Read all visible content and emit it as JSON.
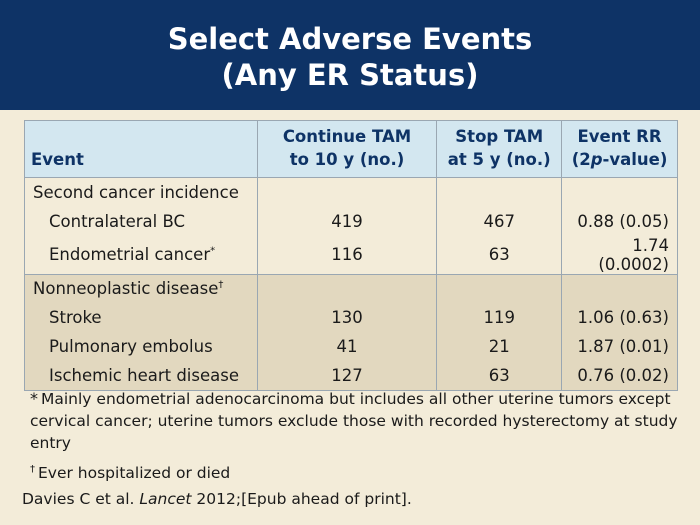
{
  "title": {
    "line1": "Select Adverse Events",
    "line2": "(Any ER Status)"
  },
  "table": {
    "headers": {
      "event": "Event",
      "continue_line1": "Continue TAM",
      "continue_line2": "to 10 y (no.)",
      "stop_line1": "Stop TAM",
      "stop_line2": "at 5 y (no.)",
      "rr_line1": "Event RR",
      "rr_line2_pre": "(2",
      "rr_line2_italic": "p",
      "rr_line2_post": "-value)"
    },
    "section1": {
      "label": "Second cancer incidence",
      "rows": [
        {
          "event": "Contralateral BC",
          "mark": "",
          "continue": "419",
          "stop": "467",
          "rr": "0.88 (0.05)"
        },
        {
          "event": "Endometrial cancer",
          "mark": "*",
          "continue": "116",
          "stop": "63",
          "rr": "1.74 (0.0002)"
        }
      ]
    },
    "section2": {
      "label": "Nonneoplastic disease",
      "label_mark": "†",
      "rows": [
        {
          "event": "Stroke",
          "continue": "130",
          "stop": "119",
          "rr": "1.06 (0.63)"
        },
        {
          "event": "Pulmonary embolus",
          "continue": "41",
          "stop": "21",
          "rr": "1.87 (0.01)"
        },
        {
          "event": "Ischemic heart disease",
          "continue": "127",
          "stop": "63",
          "rr": "0.76 (0.02)"
        }
      ]
    }
  },
  "footnotes": {
    "fn1_mark": "*",
    "fn1_text": "Mainly endometrial adenocarcinoma but includes all other uterine tumors except cervical cancer; uterine tumors exclude those with recorded hysterectomy at study entry",
    "fn2_mark": "†",
    "fn2_text": "Ever hospitalized or died"
  },
  "citation": {
    "pre": "Davies C et al. ",
    "journal": "Lancet",
    "post": " 2012;[Epub ahead of print]."
  },
  "colors": {
    "title_band": "#0e3366",
    "header_fill": "#d3e7f0",
    "background": "#f3ecd9",
    "section2_fill": "#e2d8bf"
  }
}
